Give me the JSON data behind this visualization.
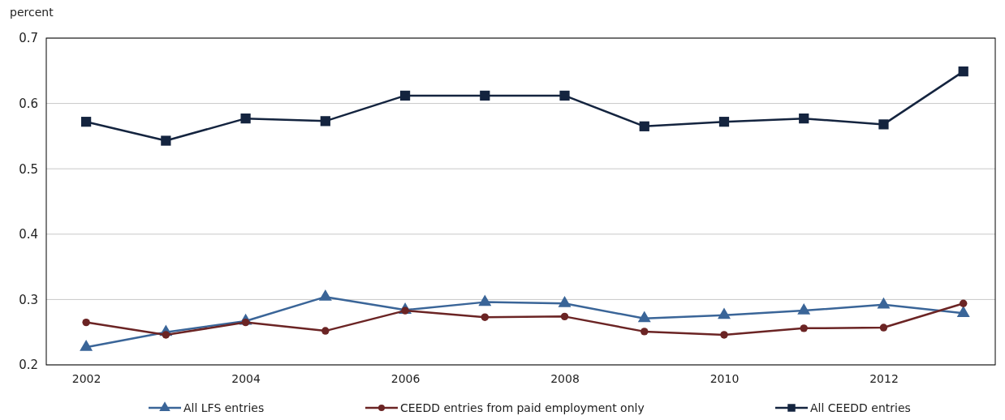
{
  "chart_data": {
    "type": "line",
    "ylabel": "percent",
    "x": [
      2002,
      2003,
      2004,
      2005,
      2006,
      2007,
      2008,
      2009,
      2010,
      2011,
      2012,
      2013
    ],
    "xlim": [
      2001.5,
      2013.4
    ],
    "xticks": [
      2002,
      2004,
      2006,
      2008,
      2010,
      2012
    ],
    "ylim": [
      0.2,
      0.7
    ],
    "yticks": [
      {
        "value": 0.2,
        "label": "0.2"
      },
      {
        "value": 0.3,
        "label": "0.3"
      },
      {
        "value": 0.4,
        "label": "0.4"
      },
      {
        "value": 0.5,
        "label": "0.5"
      },
      {
        "value": 0.6,
        "label": "0.6"
      },
      {
        "value": 0.7,
        "label": "0.7"
      }
    ],
    "grid": "y",
    "legend": "bottom",
    "line_style": "solid",
    "series": [
      {
        "name": "All LFS entries",
        "color": "#3a6598",
        "marker": "triangle",
        "values": [
          0.227,
          0.25,
          0.267,
          0.304,
          0.284,
          0.296,
          0.294,
          0.271,
          0.276,
          0.283,
          0.292,
          0.279
        ]
      },
      {
        "name": "CEEDD entries from paid employment only",
        "color": "#6b2424",
        "marker": "circle",
        "values": [
          0.265,
          0.246,
          0.265,
          0.252,
          0.283,
          0.273,
          0.274,
          0.251,
          0.246,
          0.256,
          0.257,
          0.294
        ]
      },
      {
        "name": "All CEEDD entries",
        "color": "#14243f",
        "marker": "square",
        "values": [
          0.572,
          0.543,
          0.577,
          0.573,
          0.612,
          0.612,
          0.612,
          0.565,
          0.572,
          0.577,
          0.568,
          0.649
        ]
      }
    ]
  }
}
